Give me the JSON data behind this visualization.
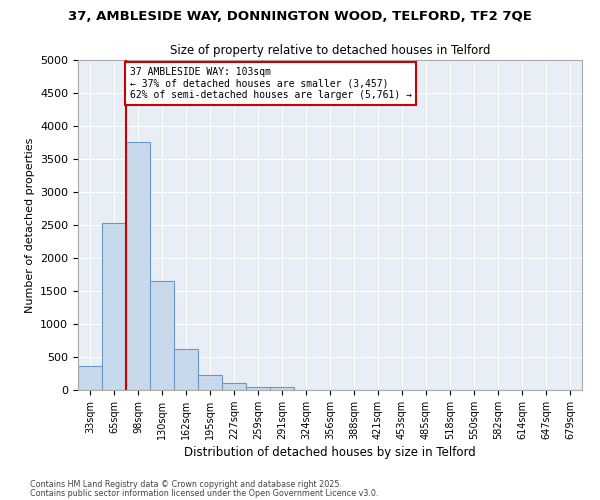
{
  "title_line1": "37, AMBLESIDE WAY, DONNINGTON WOOD, TELFORD, TF2 7QE",
  "title_line2": "Size of property relative to detached houses in Telford",
  "xlabel": "Distribution of detached houses by size in Telford",
  "ylabel": "Number of detached properties",
  "categories": [
    "33sqm",
    "65sqm",
    "98sqm",
    "130sqm",
    "162sqm",
    "195sqm",
    "227sqm",
    "259sqm",
    "291sqm",
    "324sqm",
    "356sqm",
    "388sqm",
    "421sqm",
    "453sqm",
    "485sqm",
    "518sqm",
    "550sqm",
    "582sqm",
    "614sqm",
    "647sqm",
    "679sqm"
  ],
  "values": [
    370,
    2530,
    3760,
    1650,
    620,
    220,
    100,
    45,
    40,
    0,
    0,
    0,
    0,
    0,
    0,
    0,
    0,
    0,
    0,
    0,
    0
  ],
  "bar_color": "#c9d9ec",
  "bar_edge_color": "#6699cc",
  "vline_color": "#cc0000",
  "annotation_text": "37 AMBLESIDE WAY: 103sqm\n← 37% of detached houses are smaller (3,457)\n62% of semi-detached houses are larger (5,761) →",
  "annotation_box_color": "#ffffff",
  "annotation_box_edge": "#cc0000",
  "ylim": [
    0,
    5000
  ],
  "yticks": [
    0,
    500,
    1000,
    1500,
    2000,
    2500,
    3000,
    3500,
    4000,
    4500,
    5000
  ],
  "plot_bg_color": "#e8eef5",
  "fig_bg_color": "#ffffff",
  "grid_color": "#ffffff",
  "footer_line1": "Contains HM Land Registry data © Crown copyright and database right 2025.",
  "footer_line2": "Contains public sector information licensed under the Open Government Licence v3.0.",
  "vline_x_index": 2
}
